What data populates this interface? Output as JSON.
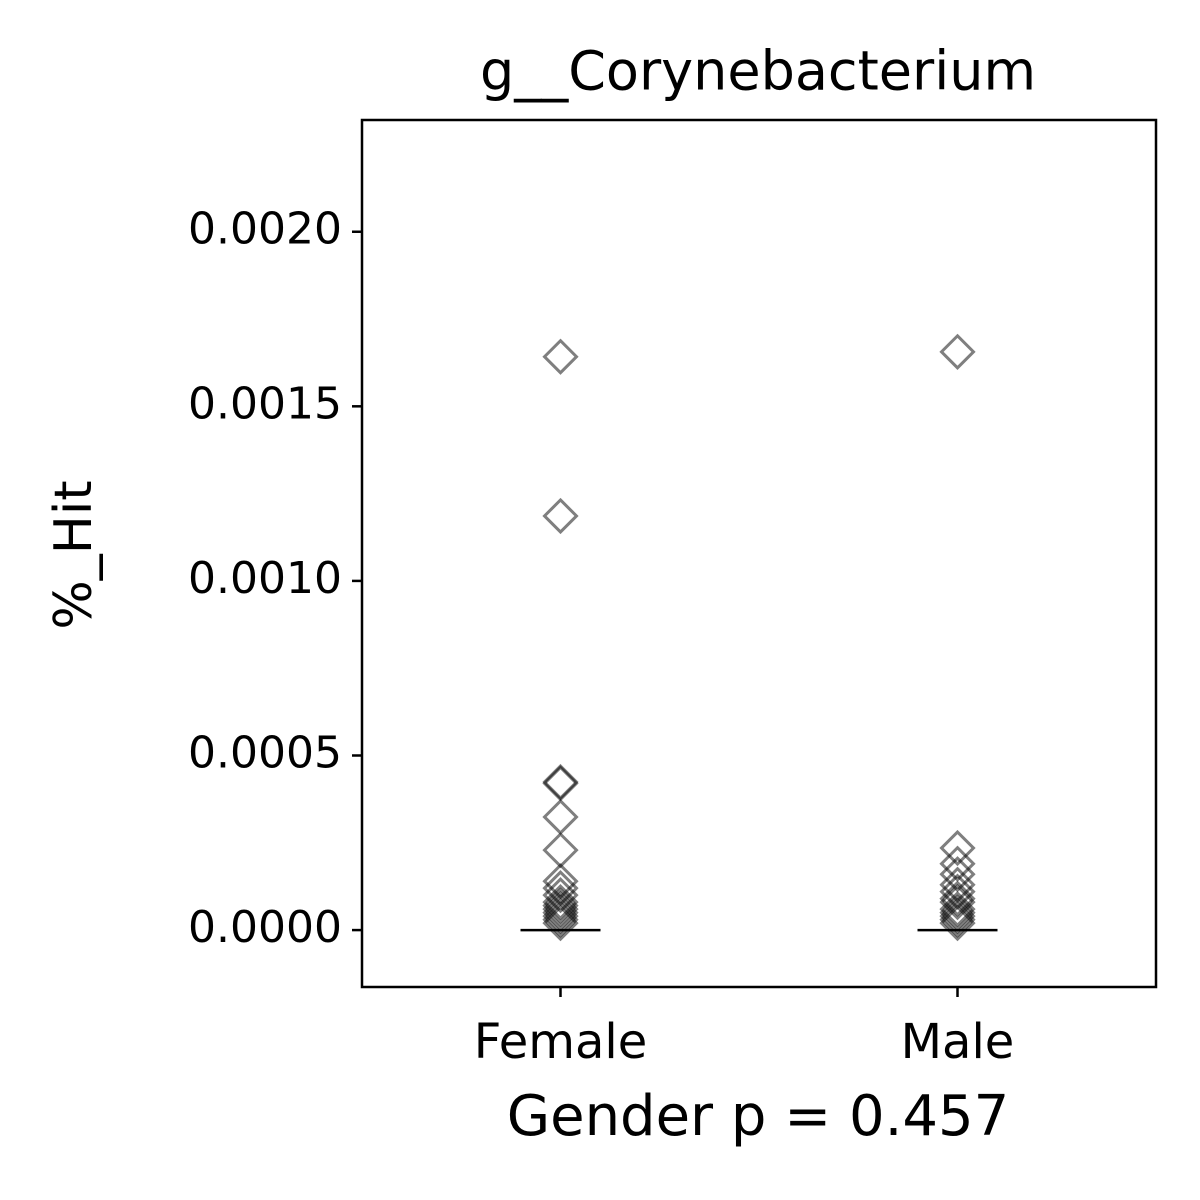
{
  "chart_data": {
    "type": "strip",
    "title": "g__Corynebacterium",
    "xlabel": "Gender p = 0.457",
    "ylabel": "%_Hit",
    "categories": [
      "Female",
      "Male"
    ],
    "groups": [
      {
        "values": [
          0.001642,
          0.001186,
          0.000424,
          0.00042,
          0.000324,
          0.000229,
          0.00014,
          0.00012,
          0.0001,
          8e-05,
          7e-05,
          6e-05,
          5e-05,
          4e-05,
          3e-05,
          2e-05
        ],
        "median": 0
      },
      {
        "values": [
          0.001656,
          0.000235,
          0.00019,
          0.00016,
          0.00013,
          0.00011,
          9e-05,
          8e-05,
          6e-05,
          5e-05,
          4e-05,
          3e-05,
          2e-05
        ],
        "median": 0
      }
    ],
    "color": "#000000",
    "marker_alpha": 0.5,
    "ylim": [
      -0.000163,
      0.00232
    ],
    "yticks": [
      {
        "value": 0,
        "label": "0.0000"
      },
      {
        "value": 0.0005,
        "label": "0.0005"
      },
      {
        "value": 0.001,
        "label": "0.0010"
      },
      {
        "value": 0.0015,
        "label": "0.0015"
      },
      {
        "value": 0.002,
        "label": "0.0020"
      }
    ]
  }
}
